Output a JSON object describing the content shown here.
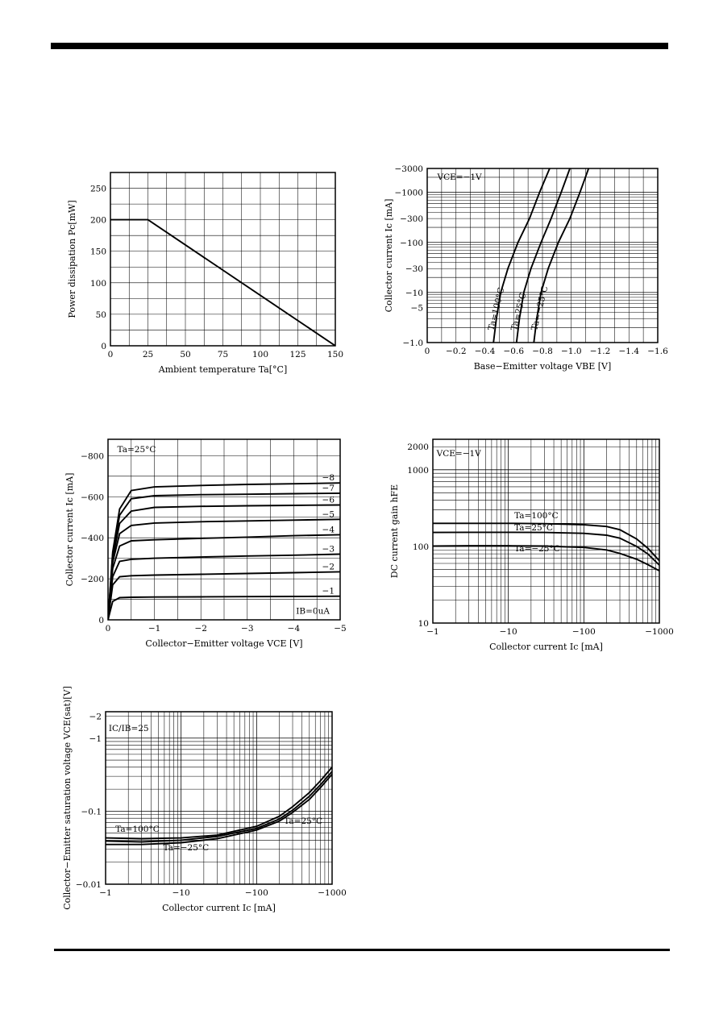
{
  "chart_data": [
    {
      "id": "pd",
      "type": "line",
      "xlabel": "Ambient temperature Ta[°C]",
      "ylabel": "Power dissipation Pc[mW]",
      "xlim": [
        0,
        150
      ],
      "ylim": [
        0,
        275
      ],
      "x_ticks": [
        0,
        25,
        50,
        75,
        100,
        125,
        150
      ],
      "x_tick_labels": [
        "0",
        "25",
        "50",
        "75",
        "100",
        "125",
        "150"
      ],
      "y_ticks": [
        0,
        50,
        100,
        150,
        200,
        250
      ],
      "y_tick_labels": [
        "0",
        "50",
        "100",
        "150",
        "200",
        "250"
      ],
      "grid": true,
      "series": [
        {
          "x": [
            0,
            25,
            150
          ],
          "y": [
            200,
            200,
            0
          ]
        }
      ],
      "annotations": []
    },
    {
      "id": "icvbe",
      "type": "line",
      "xlabel": "Base−Emitter voltage VBE [V]",
      "ylabel": "Collector current Ic [mA]",
      "xlim": [
        0,
        1.6
      ],
      "ylim": [
        1,
        3000
      ],
      "yscale": "log",
      "x_ticks": [
        0,
        0.2,
        0.4,
        0.6,
        0.8,
        1.0,
        1.2,
        1.4,
        1.6
      ],
      "x_tick_labels": [
        "0",
        "−0.2",
        "−0.4",
        "−0.6",
        "−0.8",
        "−1.0",
        "−1.2",
        "−1.4",
        "−1.6"
      ],
      "y_ticks": [
        1,
        5,
        10,
        30,
        100,
        300,
        1000,
        3000
      ],
      "y_tick_labels": [
        "−1.0",
        "−5",
        "−10",
        "−30",
        "−100",
        "−300",
        "−1000",
        "−3000"
      ],
      "grid": true,
      "series": [
        {
          "x": [
            0.46,
            0.48,
            0.51,
            0.56,
            0.63,
            0.71,
            0.78,
            0.85
          ],
          "y": [
            1,
            3,
            10,
            30,
            100,
            300,
            1000,
            3000
          ]
        },
        {
          "x": [
            0.62,
            0.64,
            0.67,
            0.72,
            0.79,
            0.86,
            0.93,
            0.99
          ],
          "y": [
            1,
            3,
            10,
            30,
            100,
            300,
            1000,
            3000
          ]
        },
        {
          "x": [
            0.74,
            0.76,
            0.79,
            0.84,
            0.91,
            0.99,
            1.06,
            1.12
          ],
          "y": [
            1,
            3,
            10,
            30,
            100,
            300,
            1000,
            3000
          ]
        }
      ],
      "annotations": [
        {
          "text": "VCE=−1V",
          "x": 0.07,
          "y": 1800,
          "angle": 0
        },
        {
          "text": "Ta=100°C",
          "x": 0.46,
          "y": 1.7,
          "angle": -76
        },
        {
          "text": "Ta=25°C",
          "x": 0.62,
          "y": 1.7,
          "angle": -76
        },
        {
          "text": "Ta=−25°C",
          "x": 0.76,
          "y": 1.7,
          "angle": -76
        }
      ]
    },
    {
      "id": "icvce",
      "type": "line",
      "xlabel": "Collector−Emitter voltage VCE [V]",
      "ylabel": "Collector current Ic [mA]",
      "xlim": [
        0,
        5
      ],
      "ylim": [
        0,
        880
      ],
      "x_ticks": [
        0,
        1,
        2,
        3,
        4,
        5
      ],
      "x_tick_labels": [
        "0",
        "−1",
        "−2",
        "−3",
        "−4",
        "−5"
      ],
      "y_ticks": [
        0,
        200,
        400,
        600,
        800
      ],
      "y_tick_labels": [
        "0",
        "−200",
        "−400",
        "−600",
        "−800"
      ],
      "grid": true,
      "series": [
        {
          "name": "−1",
          "x": [
            0,
            0.1,
            0.25,
            0.5,
            1,
            2,
            3,
            4,
            5
          ],
          "y": [
            0,
            90,
            108,
            110,
            111,
            112,
            113,
            114,
            115
          ]
        },
        {
          "name": "−2",
          "x": [
            0,
            0.1,
            0.25,
            0.5,
            1,
            2,
            3,
            4,
            5
          ],
          "y": [
            0,
            170,
            210,
            215,
            218,
            222,
            226,
            230,
            234
          ]
        },
        {
          "name": "−3",
          "x": [
            0,
            0.1,
            0.25,
            0.5,
            1,
            2,
            3,
            4,
            5
          ],
          "y": [
            0,
            210,
            285,
            295,
            300,
            306,
            311,
            315,
            320
          ]
        },
        {
          "name": "−4",
          "x": [
            0,
            0.1,
            0.25,
            0.5,
            1,
            2,
            3,
            4,
            5
          ],
          "y": [
            0,
            250,
            360,
            385,
            390,
            397,
            403,
            410,
            415
          ]
        },
        {
          "name": "−5",
          "x": [
            0,
            0.1,
            0.25,
            0.5,
            1,
            2,
            3,
            4,
            5
          ],
          "y": [
            0,
            280,
            420,
            460,
            472,
            478,
            482,
            486,
            490
          ]
        },
        {
          "name": "−6",
          "x": [
            0,
            0.1,
            0.25,
            0.5,
            1,
            2,
            3,
            4,
            5
          ],
          "y": [
            0,
            300,
            470,
            530,
            548,
            553,
            556,
            558,
            560
          ]
        },
        {
          "name": "−7",
          "x": [
            0,
            0.1,
            0.25,
            0.5,
            1,
            2,
            3,
            4,
            5
          ],
          "y": [
            0,
            320,
            510,
            590,
            605,
            610,
            612,
            615,
            617
          ]
        },
        {
          "name": "−8",
          "x": [
            0,
            0.1,
            0.25,
            0.5,
            1,
            2,
            3,
            4,
            5
          ],
          "y": [
            0,
            330,
            540,
            630,
            648,
            655,
            660,
            663,
            667
          ]
        }
      ],
      "annotations": [
        {
          "text": "Ta=25°C",
          "x": 0.2,
          "y": 818,
          "angle": 0
        },
        {
          "text": "IB=0uA",
          "x": 4.05,
          "y": 30,
          "angle": 0
        }
      ]
    },
    {
      "id": "hfe",
      "type": "line",
      "xlabel": "Collector current Ic [mA]",
      "ylabel": "DC current gain hFE",
      "xlim": [
        1,
        1000
      ],
      "ylim": [
        10,
        2500
      ],
      "xscale": "log",
      "yscale": "log",
      "x_ticks": [
        1,
        10,
        100,
        1000
      ],
      "x_tick_labels": [
        "−1",
        "−10",
        "−100",
        "−1000"
      ],
      "y_ticks": [
        10,
        100,
        1000,
        2000
      ],
      "y_tick_labels": [
        "10",
        "100",
        "1000",
        "2000"
      ],
      "grid": true,
      "series": [
        {
          "x": [
            1,
            3,
            10,
            30,
            100,
            200,
            300,
            500,
            700,
            1000
          ],
          "y": [
            200,
            200,
            200,
            198,
            192,
            182,
            165,
            125,
            95,
            65
          ]
        },
        {
          "x": [
            1,
            3,
            10,
            30,
            100,
            200,
            300,
            500,
            700,
            1000
          ],
          "y": [
            152,
            153,
            153,
            152,
            148,
            140,
            128,
            100,
            80,
            57
          ]
        },
        {
          "x": [
            1,
            3,
            10,
            30,
            100,
            200,
            300,
            500,
            700,
            1000
          ],
          "y": [
            101,
            102,
            102,
            101,
            97,
            90,
            81,
            68,
            58,
            48
          ]
        }
      ],
      "annotations": [
        {
          "text": "VCE=−1V",
          "x": 1.12,
          "y": 1500,
          "angle": 0
        },
        {
          "text": "Ta=100°C",
          "x": 12,
          "y": 232,
          "angle": 0
        },
        {
          "text": "Ta=25°C",
          "x": 12,
          "y": 162,
          "angle": 0
        },
        {
          "text": "Ta=−25°C",
          "x": 12,
          "y": 86,
          "angle": 0
        }
      ]
    },
    {
      "id": "vcesat",
      "type": "line",
      "xlabel": "Collector current Ic [mA]",
      "ylabel": "Collector−Emitter saturation voltage VCE(sat)[V]",
      "xlim": [
        1,
        1000
      ],
      "ylim": [
        0.01,
        2.3
      ],
      "xscale": "log",
      "yscale": "log",
      "x_ticks": [
        1,
        10,
        100,
        1000
      ],
      "x_tick_labels": [
        "−1",
        "−10",
        "−100",
        "−1000"
      ],
      "y_ticks": [
        0.01,
        0.1,
        1,
        2
      ],
      "y_tick_labels": [
        "−0.01",
        "−0.1",
        "−1",
        "−2"
      ],
      "grid": true,
      "series": [
        {
          "x": [
            1,
            3,
            10,
            30,
            100,
            200,
            300,
            500,
            700,
            1000
          ],
          "y": [
            0.043,
            0.042,
            0.043,
            0.047,
            0.062,
            0.085,
            0.115,
            0.18,
            0.26,
            0.4
          ]
        },
        {
          "x": [
            1,
            3,
            10,
            30,
            100,
            200,
            300,
            500,
            700,
            1000
          ],
          "y": [
            0.039,
            0.038,
            0.04,
            0.045,
            0.058,
            0.078,
            0.103,
            0.16,
            0.23,
            0.35
          ]
        },
        {
          "x": [
            1,
            3,
            10,
            30,
            100,
            200,
            300,
            500,
            700,
            1000
          ],
          "y": [
            0.035,
            0.035,
            0.037,
            0.042,
            0.055,
            0.073,
            0.096,
            0.145,
            0.21,
            0.32
          ]
        }
      ],
      "annotations": [
        {
          "text": "IC/IB=25",
          "x": 1.1,
          "y": 1.25,
          "angle": 0
        },
        {
          "text": "Ta=100°C",
          "x": 1.35,
          "y": 0.052,
          "angle": 0
        },
        {
          "text": "Ta=25°C",
          "x": 230,
          "y": 0.067,
          "angle": 0
        },
        {
          "text": "Ta=−25°C",
          "x": 5.8,
          "y": 0.029,
          "angle": 0
        }
      ]
    }
  ]
}
